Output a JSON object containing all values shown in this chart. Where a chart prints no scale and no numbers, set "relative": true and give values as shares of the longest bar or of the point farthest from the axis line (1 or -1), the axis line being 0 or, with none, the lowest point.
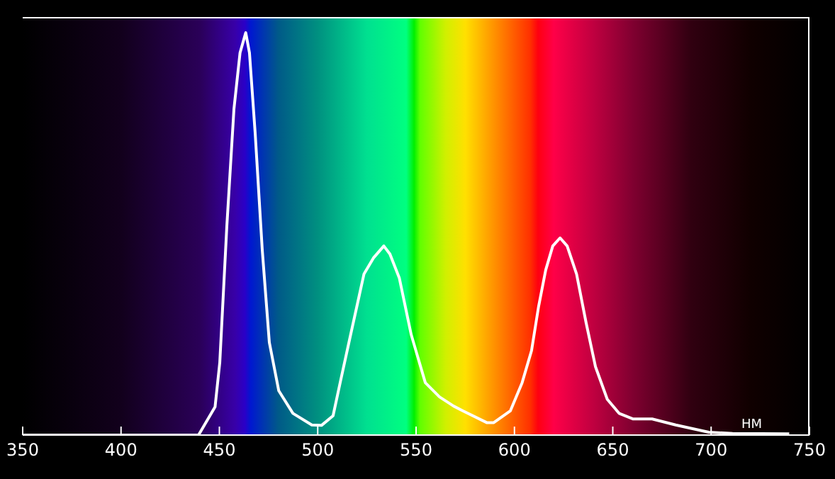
{
  "chart_data": {
    "type": "line",
    "xlabel": "НМ",
    "relative": true,
    "xlim": [
      350,
      750
    ],
    "xticks": [
      350,
      400,
      450,
      500,
      550,
      600,
      650,
      700,
      750
    ],
    "grid": false,
    "legend": false,
    "marker": "none",
    "line_style": "solid",
    "series": [
      {
        "color": "#ffffff",
        "x": [
          350,
          439.4,
          447.8,
          450.2,
          453.8,
          457.4,
          460.5,
          463.4,
          465.3,
          468.2,
          471.8,
          475.4,
          480.2,
          487.4,
          497,
          501.9,
          507.8,
          511.4,
          516.3,
          523.5,
          528.3,
          533.6,
          536.7,
          541.5,
          547.5,
          554.7,
          561.9,
          569.1,
          573.9,
          585.9,
          589.5,
          597.9,
          603.9,
          608.7,
          612.3,
          615.9,
          619.5,
          623.2,
          626.8,
          631.6,
          636.4,
          641.2,
          647.2,
          653.2,
          660.4,
          670,
          682,
          698.8,
          710.9,
          739.7
        ],
        "values": [
          0,
          0,
          0.07,
          0.18,
          0.52,
          0.81,
          0.95,
          1.0,
          0.95,
          0.75,
          0.46,
          0.23,
          0.11,
          0.054,
          0.025,
          0.024,
          0.048,
          0.13,
          0.24,
          0.4,
          0.44,
          0.47,
          0.45,
          0.39,
          0.25,
          0.13,
          0.095,
          0.072,
          0.06,
          0.031,
          0.031,
          0.06,
          0.13,
          0.21,
          0.32,
          0.41,
          0.47,
          0.49,
          0.47,
          0.4,
          0.28,
          0.17,
          0.089,
          0.054,
          0.04,
          0.04,
          0.025,
          0.007,
          0.004,
          0.003
        ]
      }
    ]
  }
}
